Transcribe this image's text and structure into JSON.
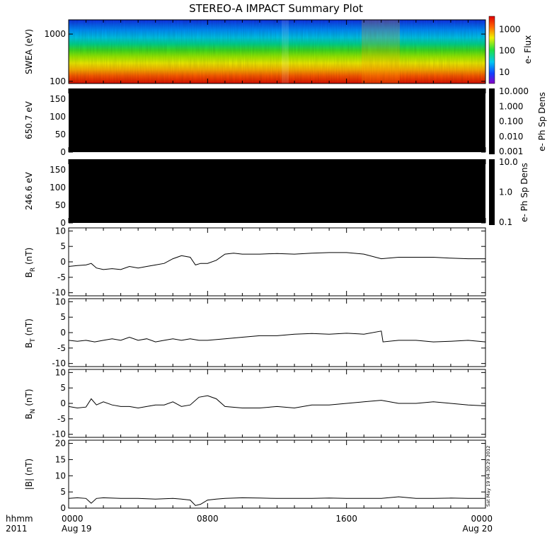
{
  "title": "STEREO-A IMPACT Summary Plot",
  "time_axis": {
    "row1_label": "hhmm",
    "row2_label": "2011",
    "ticks": [
      {
        "hours": 0,
        "time": "0000",
        "date": "Aug 19"
      },
      {
        "hours": 8,
        "time": "0800",
        "date": ""
      },
      {
        "hours": 16,
        "time": "1600",
        "date": ""
      },
      {
        "hours": 24,
        "time": "0000",
        "date": "Aug 20"
      }
    ],
    "range_hours": [
      0,
      24
    ]
  },
  "timestamp": "Sat May 19 04:30:29 2012",
  "chart_data": [
    {
      "type": "heatmap",
      "ylabel": "SWEA (eV)",
      "y_scale": "log",
      "ylim": [
        90,
        2000
      ],
      "yticks": [
        "100",
        "1000"
      ],
      "colorbar": {
        "label": "e- Flux",
        "scale": "log",
        "ticks": [
          "10",
          "100",
          "1000"
        ],
        "colormap": "rainbow"
      }
    },
    {
      "type": "heatmap",
      "ylabel": "650.7 eV",
      "ylim": [
        0,
        180
      ],
      "yticks": [
        "0",
        "50",
        "100",
        "150"
      ],
      "fill": "#000000",
      "colorbar": {
        "label": "e- Ph Sp Dens",
        "scale": "log",
        "ticks": [
          "10.000",
          "1.000",
          "0.100",
          "0.010",
          "0.001"
        ]
      }
    },
    {
      "type": "heatmap",
      "ylabel": "246.6 eV",
      "ylim": [
        0,
        180
      ],
      "yticks": [
        "0",
        "50",
        "100",
        "150"
      ],
      "fill": "#000000",
      "colorbar": {
        "label": "e- Ph Sp Dens",
        "scale": "log",
        "ticks": [
          "10.0",
          "1.0",
          "0.1"
        ]
      }
    },
    {
      "type": "line",
      "ylabel": "B_R (nT)",
      "ylim": [
        -11,
        11
      ],
      "yticks": [
        "-10",
        "-5",
        "0",
        "5",
        "10"
      ],
      "x": [
        0,
        0.5,
        1,
        1.3,
        1.6,
        2,
        2.5,
        3,
        3.5,
        4,
        4.5,
        5,
        5.5,
        6,
        6.5,
        7,
        7.3,
        7.6,
        8,
        8.5,
        9,
        9.5,
        10,
        11,
        12,
        13,
        14,
        15,
        16,
        17,
        18,
        19,
        20,
        21,
        22,
        23,
        24
      ],
      "y": [
        -1.5,
        -1.2,
        -1,
        -0.5,
        -2,
        -2.5,
        -2.2,
        -2.5,
        -1.5,
        -2,
        -1.5,
        -1,
        -0.5,
        1,
        2,
        1.5,
        -1,
        -0.5,
        -0.5,
        0.5,
        2.5,
        2.8,
        2.5,
        2.5,
        2.7,
        2.5,
        2.8,
        3,
        3,
        2.5,
        1,
        1.5,
        1.5,
        1.5,
        1.2,
        1,
        1
      ]
    },
    {
      "type": "line",
      "ylabel": "B_T (nT)",
      "ylim": [
        -11,
        11
      ],
      "yticks": [
        "-10",
        "-5",
        "0",
        "5",
        "10"
      ],
      "x": [
        0,
        0.5,
        1,
        1.5,
        2,
        2.5,
        3,
        3.5,
        4,
        4.5,
        5,
        5.5,
        6,
        6.5,
        7,
        7.5,
        8,
        9,
        10,
        11,
        12,
        13,
        14,
        15,
        16,
        17,
        18,
        18.1,
        19,
        20,
        21,
        22,
        23,
        24
      ],
      "y": [
        -2.5,
        -2.8,
        -2.5,
        -3,
        -2.5,
        -2,
        -2.5,
        -1.5,
        -2.5,
        -2,
        -3,
        -2.5,
        -2,
        -2.5,
        -2,
        -2.5,
        -2.5,
        -2,
        -1.5,
        -1,
        -1,
        -0.5,
        -0.3,
        -0.5,
        -0.2,
        -0.5,
        0.5,
        -3,
        -2.5,
        -2.5,
        -3,
        -2.8,
        -2.5,
        -3
      ]
    },
    {
      "type": "line",
      "ylabel": "B_N (nT)",
      "ylim": [
        -11,
        11
      ],
      "yticks": [
        "-10",
        "-5",
        "0",
        "5",
        "10"
      ],
      "x": [
        0,
        0.5,
        1,
        1.3,
        1.6,
        2,
        2.5,
        3,
        3.5,
        4,
        4.5,
        5,
        5.5,
        6,
        6.5,
        7,
        7.5,
        8,
        8.5,
        9,
        10,
        11,
        12,
        13,
        14,
        15,
        16,
        17,
        18,
        19,
        20,
        21,
        22,
        23,
        24
      ],
      "y": [
        -1,
        -1.5,
        -1.2,
        1.5,
        -0.5,
        0.5,
        -0.5,
        -1,
        -1,
        -1.5,
        -1,
        -0.5,
        -0.5,
        0.5,
        -1,
        -0.5,
        2,
        2.5,
        1.5,
        -1,
        -1.5,
        -1.5,
        -1,
        -1.5,
        -0.5,
        -0.5,
        0,
        0.5,
        1,
        0,
        0,
        0.5,
        0,
        -0.5,
        -0.8
      ]
    },
    {
      "type": "line",
      "ylabel": "|B| (nT)",
      "ylim": [
        0,
        21
      ],
      "yticks": [
        "0",
        "5",
        "10",
        "15",
        "20"
      ],
      "x": [
        0,
        0.5,
        1,
        1.3,
        1.6,
        2,
        3,
        4,
        5,
        6,
        6.5,
        7,
        7.3,
        7.6,
        8,
        8.5,
        9,
        10,
        11,
        12,
        13,
        14,
        15,
        16,
        17,
        18,
        19,
        20,
        21,
        22,
        23,
        24
      ],
      "y": [
        3,
        3.2,
        3,
        1.5,
        3,
        3.2,
        3,
        3,
        2.8,
        3,
        2.8,
        2.5,
        0.8,
        1.2,
        2.5,
        2.8,
        3,
        3.2,
        3.1,
        3,
        3,
        3,
        3.1,
        3,
        3,
        3,
        3.5,
        3,
        3,
        3.1,
        3,
        3
      ]
    }
  ]
}
